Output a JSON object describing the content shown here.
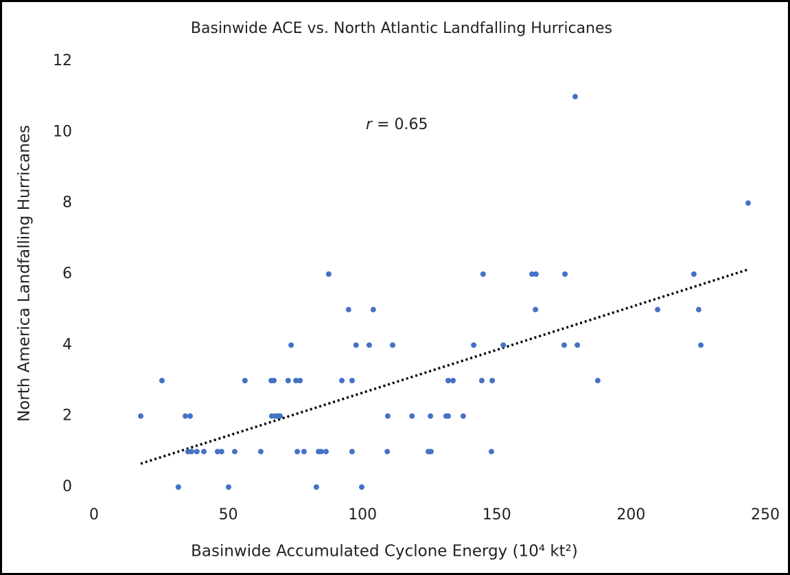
{
  "chart_data": {
    "type": "scatter",
    "title": "Basinwide ACE vs. North Atlantic Landfalling Hurricanes",
    "x_label": "Basinwide Accumulated Cyclone Energy (10⁴ kt²)",
    "y_label": "North America Landfalling Hurricanes",
    "annotation": {
      "symbol": "r",
      "text": "= 0.65"
    },
    "xlim": [
      0,
      250
    ],
    "xticks": [
      0,
      50,
      100,
      150,
      200,
      250
    ],
    "ylim": [
      0,
      12
    ],
    "yticks": [
      0,
      2,
      4,
      6,
      8,
      10,
      12
    ],
    "grid": false,
    "series": [
      {
        "color": "#4472c4",
        "x": [
          17.4,
          25.3,
          31.4,
          34,
          35.8,
          35,
          36.3,
          38.3,
          40.9,
          46,
          47.5,
          50.1,
          52.4,
          56.2,
          62.1,
          66,
          67,
          66.2,
          67.5,
          68.5,
          69.3,
          72.3,
          73.4,
          75.2,
          76.7,
          75.7,
          78.2,
          82.8,
          83.6,
          84.6,
          86.4,
          87.4,
          92.3,
          94.8,
          96.1,
          96.1,
          97.6,
          99.7,
          102.5,
          104,
          109.4,
          109.2,
          111.2,
          118.4,
          124.5,
          125.5,
          125.3,
          131.1,
          131.9,
          131.9,
          133.7,
          137.5,
          141.4,
          144.4,
          144.9,
          148.3,
          148,
          152.4,
          163.1,
          164.6,
          164.4,
          175.4,
          175.1,
          179.2,
          180,
          187.6,
          209.9,
          223.4,
          225.2,
          226,
          243.6
        ],
        "values": [
          2,
          3,
          0,
          2,
          2,
          1,
          1,
          1,
          1,
          1,
          1,
          0,
          1,
          3,
          1,
          3,
          3,
          2,
          2,
          2,
          2,
          3,
          4,
          3,
          3,
          1,
          1,
          0,
          1,
          1,
          1,
          6,
          3,
          5,
          3,
          1,
          4,
          0,
          4,
          5,
          2,
          1,
          4,
          2,
          1,
          1,
          2,
          2,
          2,
          3,
          3,
          2,
          4,
          3,
          6,
          3,
          1,
          4,
          6,
          6,
          5,
          6,
          4,
          11,
          4,
          3,
          5,
          6,
          5,
          4,
          8
        ]
      }
    ],
    "trendline": {
      "color": "#000000",
      "x": [
        17.4,
        243.6
      ],
      "values": [
        0.66,
        6.13
      ]
    }
  }
}
